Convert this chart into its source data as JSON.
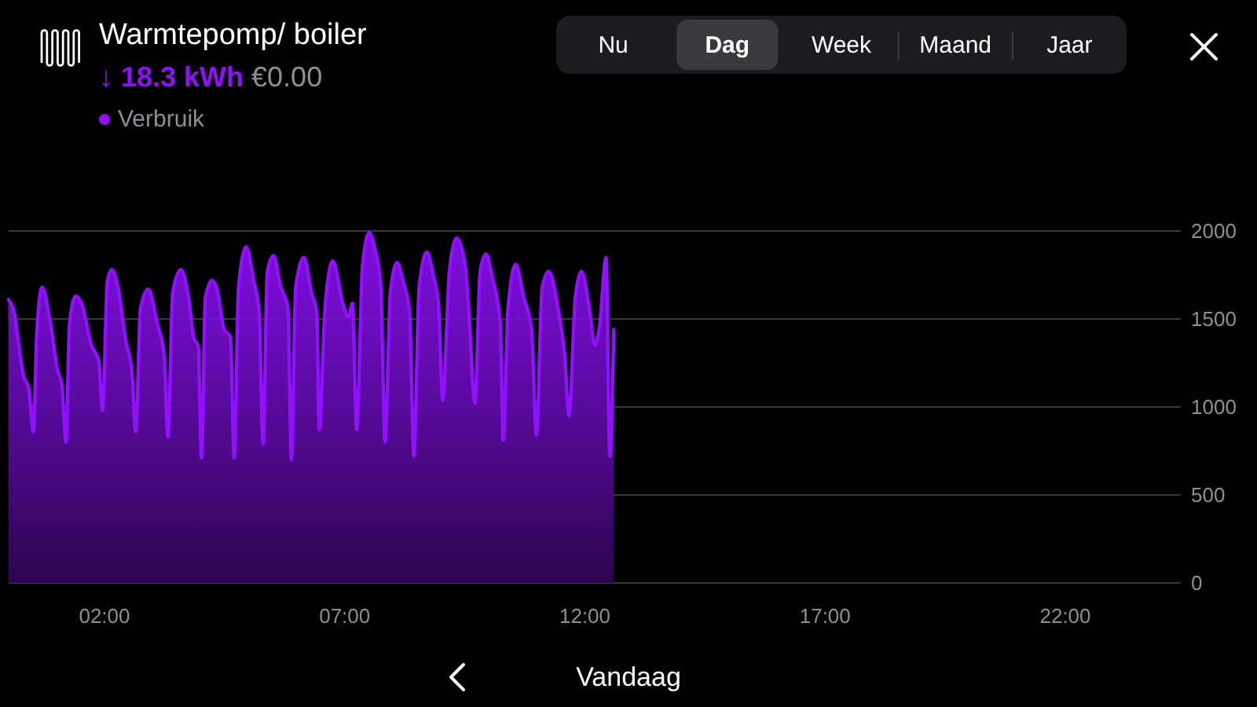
{
  "chart_data": {
    "type": "area",
    "title": "Warmtepomp/ boiler",
    "subtitle": "↓ 18.3 kWh €0.00",
    "annotations": [
      "Nu",
      "Dag",
      "Week",
      "Maand",
      "Jaar",
      "Vandaag"
    ],
    "x": [
      0,
      0.1,
      0.32,
      0.42,
      0.52,
      0.59,
      0.7,
      0.86,
      1.03,
      1.11,
      1.2,
      1.27,
      1.4,
      1.52,
      1.73,
      1.88,
      1.96,
      2.06,
      2.15,
      2.28,
      2.44,
      2.57,
      2.65,
      2.75,
      2.91,
      3.1,
      3.24,
      3.32,
      3.42,
      3.59,
      3.75,
      3.86,
      3.95,
      4.02,
      4.1,
      4.24,
      4.35,
      4.49,
      4.62,
      4.7,
      4.79,
      4.95,
      5.11,
      5.22,
      5.3,
      5.39,
      5.52,
      5.66,
      5.82,
      5.89,
      5.98,
      6.15,
      6.31,
      6.42,
      6.47,
      6.59,
      6.75,
      6.96,
      7.08,
      7.16,
      7.25,
      7.37,
      7.51,
      7.62,
      7.75,
      7.84,
      7.95,
      8.09,
      8.22,
      8.35,
      8.44,
      8.55,
      8.71,
      8.85,
      8.95,
      9.04,
      9.18,
      9.33,
      9.51,
      9.58,
      9.71,
      9.82,
      9.94,
      10.07,
      10.24,
      10.3,
      10.4,
      10.56,
      10.73,
      10.89,
      10.99,
      11.11,
      11.25,
      11.44,
      11.58,
      11.67,
      11.8,
      11.93,
      12.09,
      12.21,
      12.31,
      12.44,
      12.52,
      12.6
    ],
    "series": [
      {
        "name": "Verbruik",
        "color": "#9010ff",
        "values": [
          1610,
          1560,
          1170,
          1110,
          860,
          1410,
          1680,
          1500,
          1200,
          1130,
          800,
          1470,
          1630,
          1590,
          1350,
          1260,
          980,
          1710,
          1780,
          1680,
          1380,
          1200,
          860,
          1560,
          1670,
          1470,
          1300,
          830,
          1650,
          1780,
          1620,
          1390,
          1350,
          710,
          1620,
          1720,
          1660,
          1440,
          1400,
          710,
          1680,
          1910,
          1710,
          1540,
          790,
          1770,
          1860,
          1690,
          1560,
          700,
          1680,
          1850,
          1650,
          1530,
          870,
          1560,
          1830,
          1590,
          1510,
          1590,
          870,
          1800,
          1990,
          1910,
          1690,
          800,
          1650,
          1820,
          1710,
          1540,
          720,
          1680,
          1880,
          1740,
          1590,
          1040,
          1770,
          1960,
          1800,
          1560,
          1020,
          1770,
          1870,
          1740,
          1470,
          810,
          1560,
          1810,
          1620,
          1440,
          840,
          1680,
          1770,
          1560,
          1290,
          950,
          1620,
          1770,
          1560,
          1350,
          1470,
          1850,
          720,
          1440
        ]
      }
    ],
    "xlim": [
      0,
      24.4
    ],
    "xticks": [
      {
        "value": 2,
        "label": "02:00"
      },
      {
        "value": 7,
        "label": "07:00"
      },
      {
        "value": 12,
        "label": "12:00"
      },
      {
        "value": 17,
        "label": "17:00"
      },
      {
        "value": 22,
        "label": "22:00"
      }
    ],
    "ylim": [
      0,
      2000
    ],
    "yticks": [
      0,
      500,
      1000,
      1500,
      2000
    ],
    "grid": "y",
    "legend": "top left"
  }
}
